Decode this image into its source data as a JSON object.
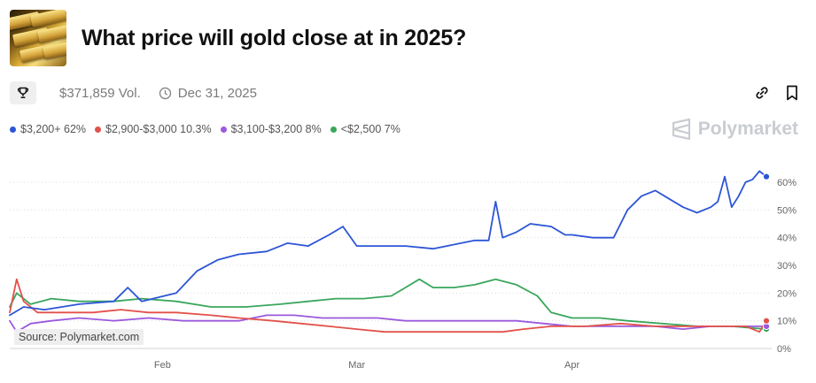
{
  "header": {
    "title": "What price will gold close at in 2025?"
  },
  "meta": {
    "volume": "$371,859 Vol.",
    "date": "Dec 31, 2025"
  },
  "legend": [
    {
      "label": "$3,200+ 62%",
      "color": "#2d55d6"
    },
    {
      "label": "$2,900-$3,000 10.3%",
      "color": "#e2514a"
    },
    {
      "label": "$3,100-$3,200 8%",
      "color": "#9b59dc"
    },
    {
      "label": "<$2,500 7%",
      "color": "#3aa65c"
    }
  ],
  "watermark": "Polymarket",
  "source": "Source: Polymarket.com",
  "icons": {
    "trophy": "trophy-icon",
    "clock": "clock-icon",
    "link": "link-icon",
    "bookmark": "bookmark-icon",
    "logo": "polymarket-logo-icon"
  },
  "chart_data": {
    "type": "line",
    "x_domain": [
      "2025-01-10",
      "2025-04-29"
    ],
    "x_ticks": [
      {
        "label": "Feb",
        "date": "2025-02-01"
      },
      {
        "label": "Mar",
        "date": "2025-03-01"
      },
      {
        "label": "Apr",
        "date": "2025-04-01"
      }
    ],
    "y_ticks": [
      0,
      10,
      20,
      30,
      40,
      50,
      60
    ],
    "y_tick_labels": [
      "0%",
      "10%",
      "20%",
      "30%",
      "40%",
      "50%",
      "60%"
    ],
    "ylim": [
      0,
      65
    ],
    "grid": true,
    "series": [
      {
        "name": "$3,200+",
        "color": "#2d55d6",
        "points": [
          [
            "2025-01-10",
            12
          ],
          [
            "2025-01-12",
            15
          ],
          [
            "2025-01-15",
            14
          ],
          [
            "2025-01-20",
            16
          ],
          [
            "2025-01-25",
            17
          ],
          [
            "2025-01-27",
            22
          ],
          [
            "2025-01-29",
            17
          ],
          [
            "2025-02-03",
            20
          ],
          [
            "2025-02-06",
            28
          ],
          [
            "2025-02-09",
            32
          ],
          [
            "2025-02-12",
            34
          ],
          [
            "2025-02-16",
            35
          ],
          [
            "2025-02-19",
            38
          ],
          [
            "2025-02-22",
            37
          ],
          [
            "2025-02-25",
            41
          ],
          [
            "2025-02-27",
            44
          ],
          [
            "2025-03-01",
            37
          ],
          [
            "2025-03-05",
            37
          ],
          [
            "2025-03-08",
            37
          ],
          [
            "2025-03-12",
            36
          ],
          [
            "2025-03-16",
            38
          ],
          [
            "2025-03-18",
            39
          ],
          [
            "2025-03-20",
            39
          ],
          [
            "2025-03-21",
            53
          ],
          [
            "2025-03-22",
            40
          ],
          [
            "2025-03-24",
            42
          ],
          [
            "2025-03-26",
            45
          ],
          [
            "2025-03-29",
            44
          ],
          [
            "2025-03-31",
            41
          ],
          [
            "2025-04-01",
            41
          ],
          [
            "2025-04-04",
            40
          ],
          [
            "2025-04-07",
            40
          ],
          [
            "2025-04-09",
            50
          ],
          [
            "2025-04-11",
            55
          ],
          [
            "2025-04-13",
            57
          ],
          [
            "2025-04-15",
            54
          ],
          [
            "2025-04-17",
            51
          ],
          [
            "2025-04-19",
            49
          ],
          [
            "2025-04-21",
            51
          ],
          [
            "2025-04-22",
            53
          ],
          [
            "2025-04-23",
            62
          ],
          [
            "2025-04-24",
            51
          ],
          [
            "2025-04-25",
            55
          ],
          [
            "2025-04-26",
            60
          ],
          [
            "2025-04-27",
            61
          ],
          [
            "2025-04-28",
            64
          ],
          [
            "2025-04-29",
            62
          ]
        ]
      },
      {
        "name": "$2,900-$3,000",
        "color": "#e2514a",
        "points": [
          [
            "2025-01-10",
            13
          ],
          [
            "2025-01-11",
            25
          ],
          [
            "2025-01-12",
            17
          ],
          [
            "2025-01-14",
            13
          ],
          [
            "2025-01-18",
            13
          ],
          [
            "2025-01-22",
            13
          ],
          [
            "2025-01-26",
            14
          ],
          [
            "2025-01-30",
            13
          ],
          [
            "2025-02-03",
            13
          ],
          [
            "2025-02-08",
            12
          ],
          [
            "2025-02-12",
            11
          ],
          [
            "2025-02-17",
            10
          ],
          [
            "2025-02-21",
            9
          ],
          [
            "2025-02-25",
            8
          ],
          [
            "2025-03-01",
            7
          ],
          [
            "2025-03-05",
            6
          ],
          [
            "2025-03-09",
            6
          ],
          [
            "2025-03-13",
            6
          ],
          [
            "2025-03-18",
            6
          ],
          [
            "2025-03-22",
            6
          ],
          [
            "2025-03-25",
            7
          ],
          [
            "2025-03-29",
            8
          ],
          [
            "2025-04-03",
            8
          ],
          [
            "2025-04-08",
            9
          ],
          [
            "2025-04-13",
            8
          ],
          [
            "2025-04-18",
            8
          ],
          [
            "2025-04-22",
            8
          ],
          [
            "2025-04-26",
            8
          ],
          [
            "2025-04-28",
            6
          ],
          [
            "2025-04-29",
            10
          ]
        ]
      },
      {
        "name": "$3,100-$3,200",
        "color": "#9b59dc",
        "points": [
          [
            "2025-01-10",
            10
          ],
          [
            "2025-01-11",
            6
          ],
          [
            "2025-01-13",
            9
          ],
          [
            "2025-01-16",
            10
          ],
          [
            "2025-01-20",
            11
          ],
          [
            "2025-01-25",
            10
          ],
          [
            "2025-01-30",
            11
          ],
          [
            "2025-02-04",
            10
          ],
          [
            "2025-02-08",
            10
          ],
          [
            "2025-02-12",
            10
          ],
          [
            "2025-02-16",
            12
          ],
          [
            "2025-02-20",
            12
          ],
          [
            "2025-02-24",
            11
          ],
          [
            "2025-02-28",
            11
          ],
          [
            "2025-03-04",
            11
          ],
          [
            "2025-03-08",
            10
          ],
          [
            "2025-03-12",
            10
          ],
          [
            "2025-03-16",
            10
          ],
          [
            "2025-03-20",
            10
          ],
          [
            "2025-03-24",
            10
          ],
          [
            "2025-03-28",
            9
          ],
          [
            "2025-04-01",
            8
          ],
          [
            "2025-04-05",
            8
          ],
          [
            "2025-04-09",
            8
          ],
          [
            "2025-04-13",
            8
          ],
          [
            "2025-04-17",
            7
          ],
          [
            "2025-04-21",
            8
          ],
          [
            "2025-04-25",
            8
          ],
          [
            "2025-04-29",
            8
          ]
        ]
      },
      {
        "name": "<$2,500",
        "color": "#3aa65c",
        "points": [
          [
            "2025-01-10",
            15
          ],
          [
            "2025-01-11",
            20
          ],
          [
            "2025-01-13",
            16
          ],
          [
            "2025-01-16",
            18
          ],
          [
            "2025-01-20",
            17
          ],
          [
            "2025-01-25",
            17
          ],
          [
            "2025-01-29",
            18
          ],
          [
            "2025-02-03",
            17
          ],
          [
            "2025-02-08",
            15
          ],
          [
            "2025-02-13",
            15
          ],
          [
            "2025-02-18",
            16
          ],
          [
            "2025-02-22",
            17
          ],
          [
            "2025-02-26",
            18
          ],
          [
            "2025-03-02",
            18
          ],
          [
            "2025-03-06",
            19
          ],
          [
            "2025-03-08",
            22
          ],
          [
            "2025-03-10",
            25
          ],
          [
            "2025-03-12",
            22
          ],
          [
            "2025-03-15",
            22
          ],
          [
            "2025-03-18",
            23
          ],
          [
            "2025-03-21",
            25
          ],
          [
            "2025-03-24",
            23
          ],
          [
            "2025-03-27",
            19
          ],
          [
            "2025-03-29",
            13
          ],
          [
            "2025-04-01",
            11
          ],
          [
            "2025-04-05",
            11
          ],
          [
            "2025-04-09",
            10
          ],
          [
            "2025-04-14",
            9
          ],
          [
            "2025-04-19",
            8
          ],
          [
            "2025-04-24",
            8
          ],
          [
            "2025-04-29",
            7
          ]
        ]
      }
    ]
  }
}
